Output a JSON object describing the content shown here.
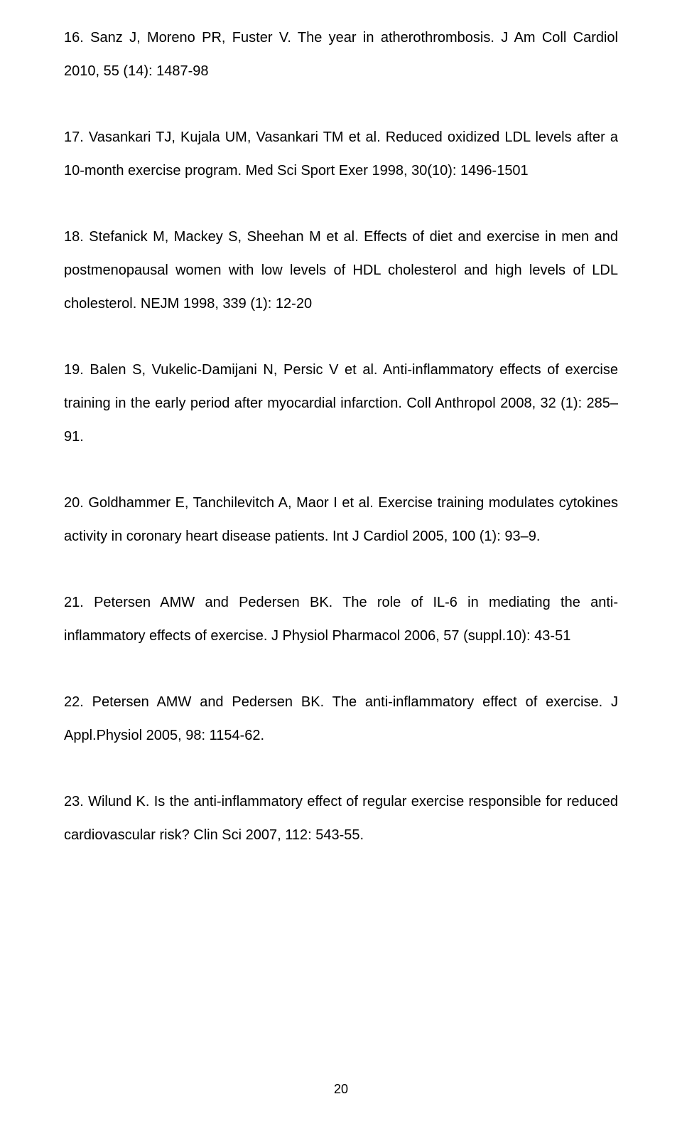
{
  "typography": {
    "font_family": "Arial",
    "font_size_pt": 15,
    "line_height": 2.35,
    "text_color": "#000000",
    "background_color": "#ffffff",
    "text_align": "justify"
  },
  "references": [
    "16. Sanz J, Moreno PR, Fuster V. The year in atherothrombosis. J Am Coll Cardiol 2010, 55 (14): 1487-98",
    "17. Vasankari TJ, Kujala UM, Vasankari TM et al. Reduced oxidized LDL levels after a 10-month exercise program. Med Sci Sport Exer 1998, 30(10): 1496-1501",
    "18. Stefanick M, Mackey S, Sheehan M et al. Effects of diet and exercise in men and postmenopausal women with low levels of HDL cholesterol and high levels of LDL cholesterol. NEJM 1998, 339 (1): 12-20",
    "19. Balen S, Vukelic-Damijani N, Persic V et al. Anti-inflammatory effects of exercise training in the early period after myocardial infarction. Coll Anthropol 2008, 32 (1): 285–91.",
    "20. Goldhammer E, Tanchilevitch A, Maor I et al. Exercise training modulates cytokines activity in coronary heart disease patients. Int J Cardiol 2005, 100 (1): 93–9.",
    "21. Petersen AMW and Pedersen BK. The role of IL-6 in mediating the anti-inflammatory effects of exercise. J Physiol Pharmacol 2006, 57 (suppl.10): 43-51",
    "22. Petersen AMW and Pedersen BK. The anti-inflammatory effect of exercise. J Appl.Physiol 2005, 98: 1154-62.",
    "23. Wilund K. Is the anti-inflammatory effect of regular exercise responsible for reduced cardiovascular risk? Clin Sci 2007, 112: 543-55."
  ],
  "page_number": "20"
}
